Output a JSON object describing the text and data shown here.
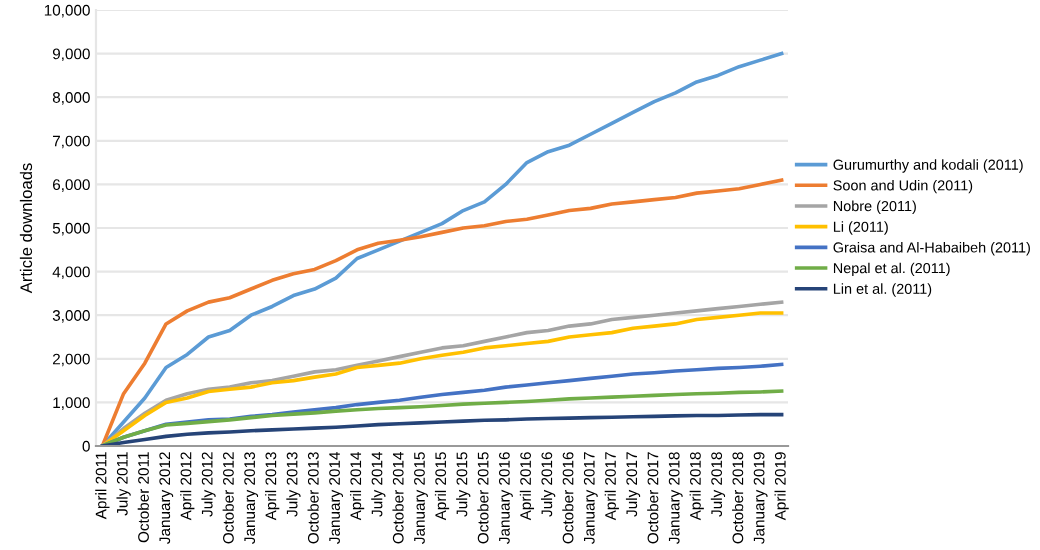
{
  "chart_data": {
    "type": "line",
    "ylabel": "Article downloads",
    "categories": [
      "April 2011",
      "July 2011",
      "October 2011",
      "January 2012",
      "April 2012",
      "July 2012",
      "October 2012",
      "January 2013",
      "April 2013",
      "July 2013",
      "October 2013",
      "January 2014",
      "April 2014",
      "July 2014",
      "October 2014",
      "January 2015",
      "April 2015",
      "July 2015",
      "October 2015",
      "January 2016",
      "April 2016",
      "July 2016",
      "October 2016",
      "January 2017",
      "April 2017",
      "July 2017",
      "October 2017",
      "January 2018",
      "April 2018",
      "July 2018",
      "October 2018",
      "January 2019",
      "April 2019"
    ],
    "series": [
      {
        "name": "Gurumurthy and kodali (2011)",
        "color": "#5b9bd5",
        "values": [
          0,
          550,
          1100,
          1800,
          2100,
          2500,
          2650,
          3000,
          3200,
          3450,
          3600,
          3850,
          4300,
          4500,
          4700,
          4900,
          5100,
          5400,
          5600,
          6000,
          6500,
          6750,
          6900,
          7150,
          7400,
          7650,
          7900,
          8100,
          8350,
          8500,
          8700,
          8850,
          9000
        ]
      },
      {
        "name": "Soon and Udin (2011)",
        "color": "#ed7d31",
        "values": [
          0,
          1200,
          1900,
          2800,
          3100,
          3300,
          3400,
          3600,
          3800,
          3950,
          4050,
          4250,
          4500,
          4650,
          4720,
          4800,
          4900,
          5000,
          5050,
          5150,
          5200,
          5300,
          5400,
          5450,
          5550,
          5600,
          5650,
          5700,
          5800,
          5850,
          5900,
          6000,
          6100
        ]
      },
      {
        "name": "Nobre (2011)",
        "color": "#a5a5a5",
        "values": [
          0,
          400,
          750,
          1050,
          1200,
          1300,
          1350,
          1450,
          1500,
          1600,
          1700,
          1750,
          1850,
          1950,
          2050,
          2150,
          2250,
          2300,
          2400,
          2500,
          2600,
          2650,
          2750,
          2800,
          2900,
          2950,
          3000,
          3050,
          3100,
          3150,
          3200,
          3250,
          3300
        ]
      },
      {
        "name": "Li (2011)",
        "color": "#ffc000",
        "values": [
          0,
          350,
          700,
          1000,
          1100,
          1250,
          1300,
          1350,
          1450,
          1500,
          1580,
          1650,
          1800,
          1850,
          1900,
          2000,
          2080,
          2150,
          2250,
          2300,
          2350,
          2400,
          2500,
          2550,
          2600,
          2700,
          2750,
          2800,
          2900,
          2950,
          3000,
          3050,
          3050
        ]
      },
      {
        "name": "Graisa and Al-Habaibeh (2011)",
        "color": "#4472c4",
        "values": [
          0,
          200,
          350,
          500,
          550,
          600,
          620,
          680,
          720,
          780,
          830,
          880,
          950,
          1000,
          1050,
          1120,
          1180,
          1230,
          1280,
          1350,
          1400,
          1450,
          1500,
          1550,
          1600,
          1650,
          1680,
          1720,
          1750,
          1780,
          1800,
          1830,
          1870
        ]
      },
      {
        "name": "Nepal et al. (2011)",
        "color": "#70ad47",
        "values": [
          0,
          200,
          350,
          480,
          520,
          560,
          600,
          650,
          700,
          730,
          760,
          800,
          830,
          860,
          880,
          900,
          930,
          960,
          980,
          1000,
          1020,
          1050,
          1080,
          1100,
          1120,
          1140,
          1160,
          1180,
          1200,
          1210,
          1230,
          1240,
          1260
        ]
      },
      {
        "name": "Lin et al. (2011)",
        "color": "#264478",
        "values": [
          0,
          80,
          150,
          220,
          270,
          300,
          320,
          350,
          370,
          390,
          410,
          430,
          460,
          490,
          510,
          530,
          550,
          570,
          590,
          600,
          620,
          630,
          640,
          650,
          660,
          670,
          680,
          690,
          700,
          700,
          710,
          720,
          720
        ]
      }
    ],
    "ylim": [
      0,
      10000
    ],
    "yticks": [
      0,
      {
        "value": 1000,
        "label": "1,000"
      },
      {
        "value": 2000,
        "label": "2,000"
      },
      {
        "value": 3000,
        "label": "3,000"
      },
      {
        "value": 4000,
        "label": "4,000"
      },
      {
        "value": 5000,
        "label": "5,000"
      },
      {
        "value": 6000,
        "label": "6,000"
      },
      {
        "value": 7000,
        "label": "7,000"
      },
      {
        "value": 8000,
        "label": "8,000"
      },
      {
        "value": 9000,
        "label": "9,000"
      },
      {
        "value": 10000,
        "label": "10,000"
      }
    ],
    "grid": "y",
    "legend": "right",
    "marker": "none",
    "line_style": "solid"
  }
}
